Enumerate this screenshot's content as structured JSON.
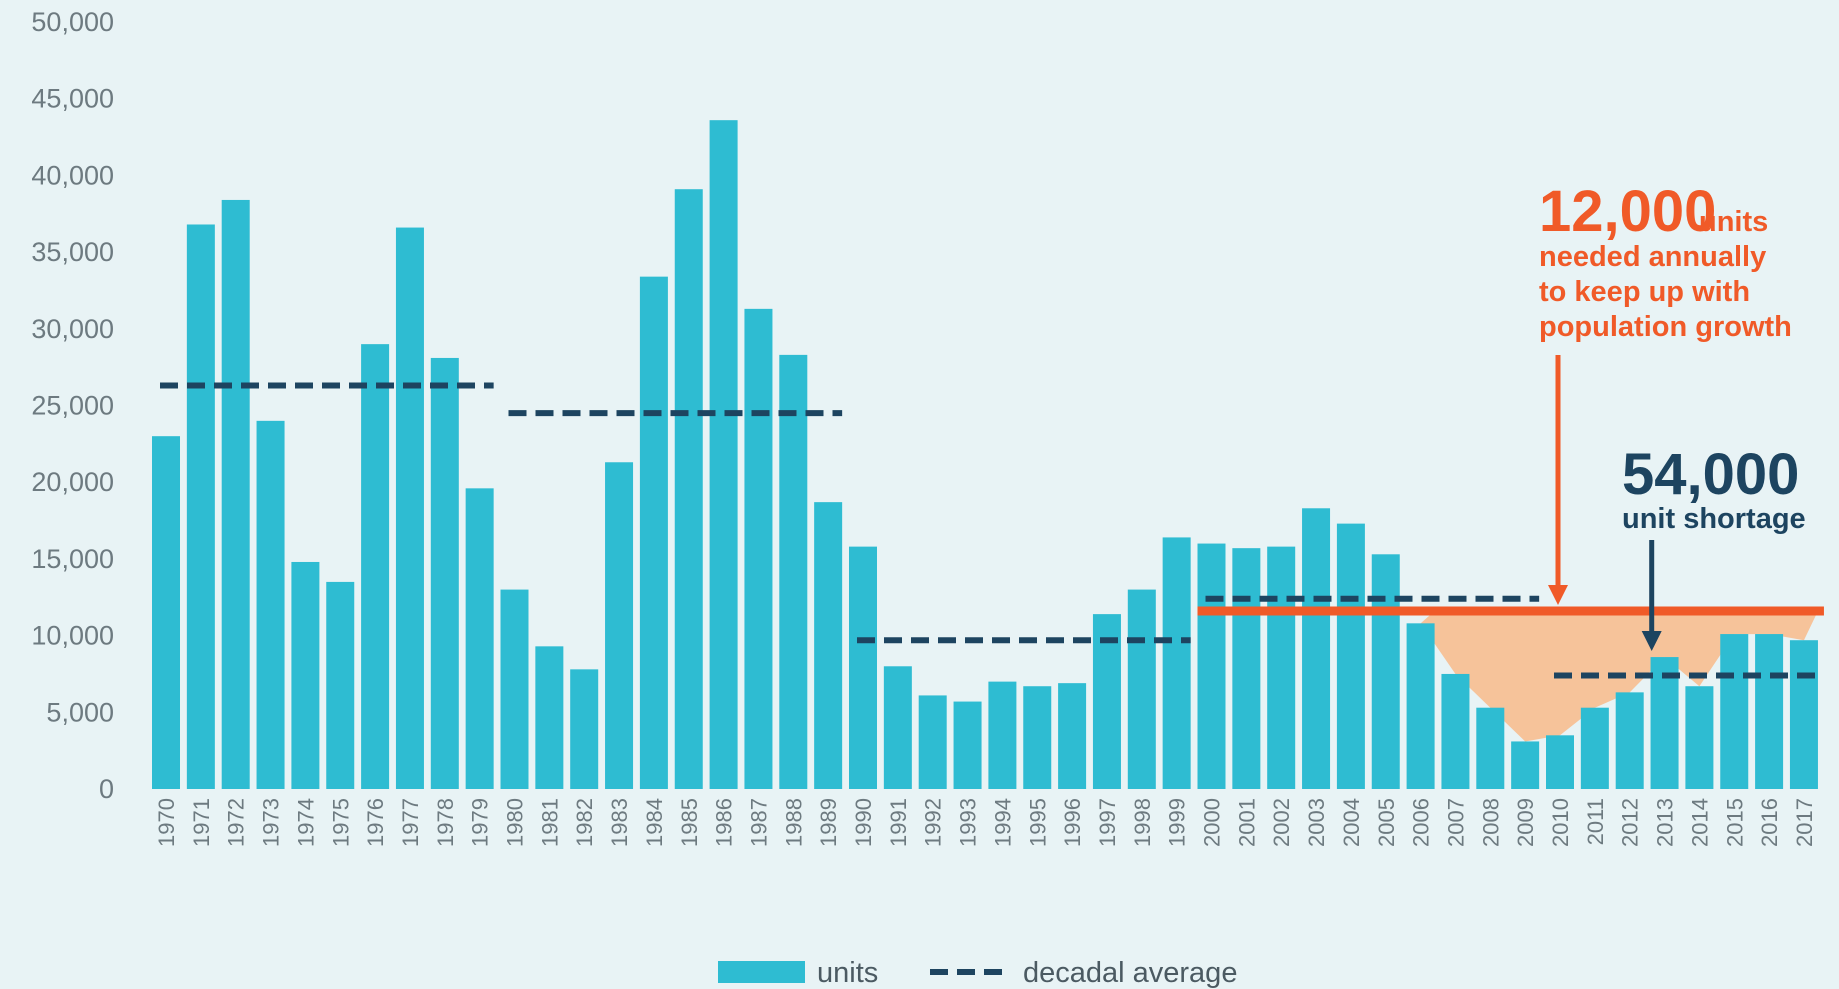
{
  "chart_data": {
    "type": "bar",
    "title": "",
    "xlabel": "",
    "ylabel": "",
    "ylim": [
      0,
      50000
    ],
    "y_ticks": [
      "0",
      "5,000",
      "10,000",
      "15,000",
      "20,000",
      "25,000",
      "30,000",
      "35,000",
      "40,000",
      "45,000",
      "50,000"
    ],
    "y_tick_values": [
      0,
      5000,
      10000,
      15000,
      20000,
      25000,
      30000,
      35000,
      40000,
      45000,
      50000
    ],
    "grid": false,
    "categories": [
      "1970",
      "1971",
      "1972",
      "1973",
      "1974",
      "1975",
      "1976",
      "1977",
      "1978",
      "1979",
      "1980",
      "1981",
      "1982",
      "1983",
      "1984",
      "1985",
      "1986",
      "1987",
      "1988",
      "1989",
      "1990",
      "1991",
      "1992",
      "1993",
      "1994",
      "1995",
      "1996",
      "1997",
      "1998",
      "1999",
      "2000",
      "2001",
      "2002",
      "2003",
      "2004",
      "2005",
      "2006",
      "2007",
      "2008",
      "2009",
      "2010",
      "2011",
      "2012",
      "2013",
      "2014",
      "2015",
      "2016",
      "2017"
    ],
    "series": [
      {
        "name": "units",
        "color": "#2ebcd2",
        "values": [
          23000,
          36800,
          38400,
          24000,
          14800,
          13500,
          29000,
          36600,
          28100,
          19600,
          13000,
          9300,
          7800,
          21300,
          33400,
          39100,
          43600,
          31300,
          28300,
          18700,
          15800,
          8000,
          6100,
          5700,
          7000,
          6700,
          6900,
          11400,
          13000,
          16400,
          16000,
          15700,
          15800,
          18300,
          17300,
          15300,
          10800,
          7500,
          5300,
          3100,
          3500,
          5300,
          6300,
          8600,
          6700,
          10100,
          10100,
          9700
        ]
      }
    ],
    "decadal_average": {
      "name": "decadal average",
      "color": "#1d4460",
      "segments": [
        {
          "from": "1970",
          "to": "1979",
          "value": 26300
        },
        {
          "from": "1980",
          "to": "1989",
          "value": 24500
        },
        {
          "from": "1990",
          "to": "1999",
          "value": 9700
        },
        {
          "from": "2000",
          "to": "2009",
          "value": 12400
        },
        {
          "from": "2010",
          "to": "2017",
          "value": 7400
        }
      ]
    },
    "needed_line": {
      "from": "2000",
      "to": "2017",
      "value": 11600,
      "color": "#f05a28"
    },
    "shortage_fill_color": "#f6c39a",
    "shortage_from": "2006",
    "legend": {
      "position": "bottom-center",
      "items": [
        {
          "label": "units",
          "style": "bar",
          "color": "#2ebcd2"
        },
        {
          "label": "decadal average",
          "style": "dashed",
          "color": "#1d4460"
        }
      ]
    },
    "annotations": {
      "needed": {
        "value_text": "12,000",
        "unit_text": "units",
        "lines": [
          "needed annually",
          "to keep up with",
          "population growth"
        ],
        "arrow_year": "2010"
      },
      "shortage": {
        "value_text": "54,000",
        "lines": [
          "unit shortage"
        ],
        "arrow_year": "2012"
      }
    }
  }
}
